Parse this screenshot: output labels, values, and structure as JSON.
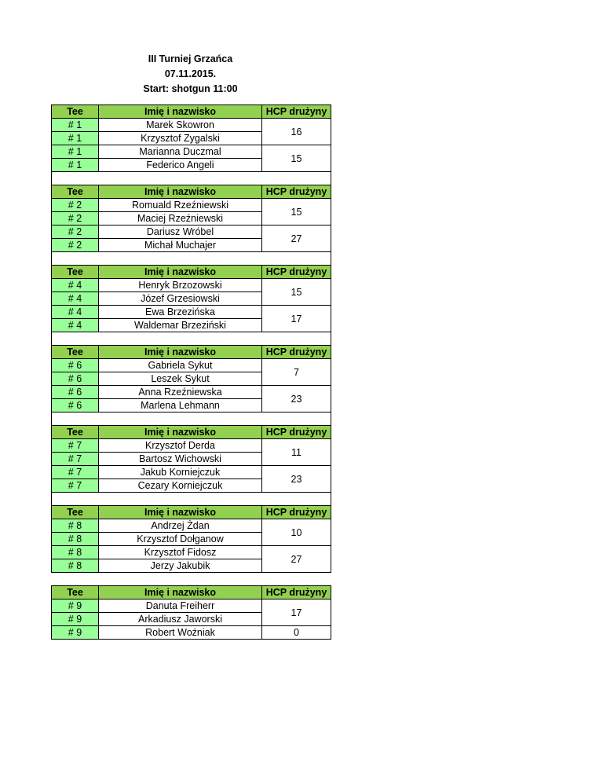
{
  "title": {
    "line1": "III Turniej Grzańca",
    "line2": "07.11.2015.",
    "line3": "Start: shotgun 11:00"
  },
  "headers": {
    "tee": "Tee",
    "name": "Imię i nazwisko",
    "hcp": "HCP drużyny"
  },
  "colors": {
    "header": "#92d050",
    "tee_cell": "#99ff99"
  },
  "groups": [
    {
      "tee": "# 1",
      "players": [
        "Marek Skowron",
        "Krzysztof Zygalski",
        "Marianna Duczmal",
        "Federico Angeli"
      ],
      "hcp": [
        "16",
        "15"
      ]
    },
    {
      "tee": "# 2",
      "players": [
        "Romuald Rzeźniewski",
        "Maciej Rzeźniewski",
        "Dariusz Wróbel",
        "Michał Muchajer"
      ],
      "hcp": [
        "15",
        "27"
      ]
    },
    {
      "tee": "# 4",
      "players": [
        "Henryk Brzozowski",
        "Józef Grzesiowski",
        "Ewa Brzezińska",
        "Waldemar Brzeziński"
      ],
      "hcp": [
        "15",
        "17"
      ]
    },
    {
      "tee": "# 6",
      "players": [
        "Gabriela Sykut",
        "Leszek Sykut",
        "Anna Rzeźniewska",
        "Marlena Lehmann"
      ],
      "hcp": [
        "7",
        "23"
      ]
    },
    {
      "tee": "# 7",
      "players": [
        "Krzysztof Derda",
        "Bartosz Wichowski",
        "Jakub Korniejczuk",
        "Cezary Korniejczuk"
      ],
      "hcp": [
        "11",
        "23"
      ]
    },
    {
      "tee": "# 8",
      "players": [
        "Andrzej Żdan",
        "Krzysztof Dołganow",
        "Krzysztof Fidosz",
        "Jerzy Jakubik"
      ],
      "hcp": [
        "10",
        "27"
      ]
    },
    {
      "tee": "# 9",
      "players": [
        "Danuta Freiherr",
        "Arkadiusz Jaworski",
        "Robert Woźniak"
      ],
      "hcp": [
        "17",
        "0"
      ]
    }
  ]
}
